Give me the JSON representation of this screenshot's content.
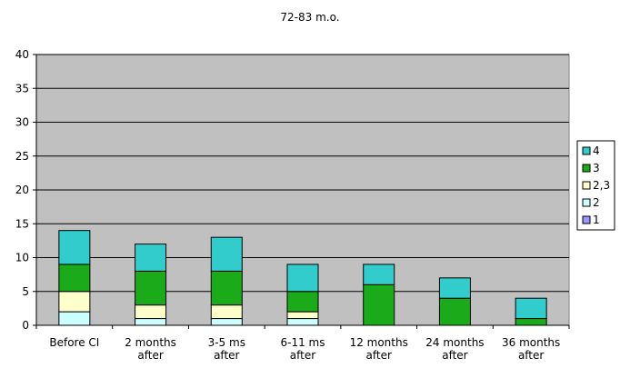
{
  "chart_data": {
    "type": "bar",
    "stacked": true,
    "title": "72-83 m.o.",
    "xlabel": "",
    "ylabel": "",
    "ylim": [
      0,
      40
    ],
    "yticks": [
      0,
      5,
      10,
      15,
      20,
      25,
      30,
      35,
      40
    ],
    "grid": true,
    "legend_position": "right",
    "plot_background": "#c0c0c0",
    "categories": [
      [
        "Before CI"
      ],
      [
        "2 months",
        "after"
      ],
      [
        "3-5 ms",
        "after"
      ],
      [
        "6-11 ms",
        "after"
      ],
      [
        "12 months",
        "after"
      ],
      [
        "24 months",
        "after"
      ],
      [
        "36 months",
        "after"
      ]
    ],
    "series": [
      {
        "name": "1",
        "color": "#9999ff",
        "values": [
          0,
          0,
          0,
          0,
          0,
          0,
          0
        ]
      },
      {
        "name": "2",
        "color": "#ccffff",
        "values": [
          2,
          1,
          1,
          1,
          0,
          0,
          0
        ]
      },
      {
        "name": "2,3",
        "color": "#ffffcc",
        "values": [
          3,
          2,
          2,
          1,
          0,
          0,
          0
        ]
      },
      {
        "name": "3",
        "color": "#1aaa1a",
        "values": [
          4,
          5,
          5,
          3,
          6,
          4,
          1
        ]
      },
      {
        "name": "4",
        "color": "#33cccc",
        "values": [
          5,
          4,
          5,
          4,
          3,
          3,
          3
        ]
      }
    ],
    "legend_order": [
      "4",
      "3",
      "2,3",
      "2",
      "1"
    ]
  }
}
